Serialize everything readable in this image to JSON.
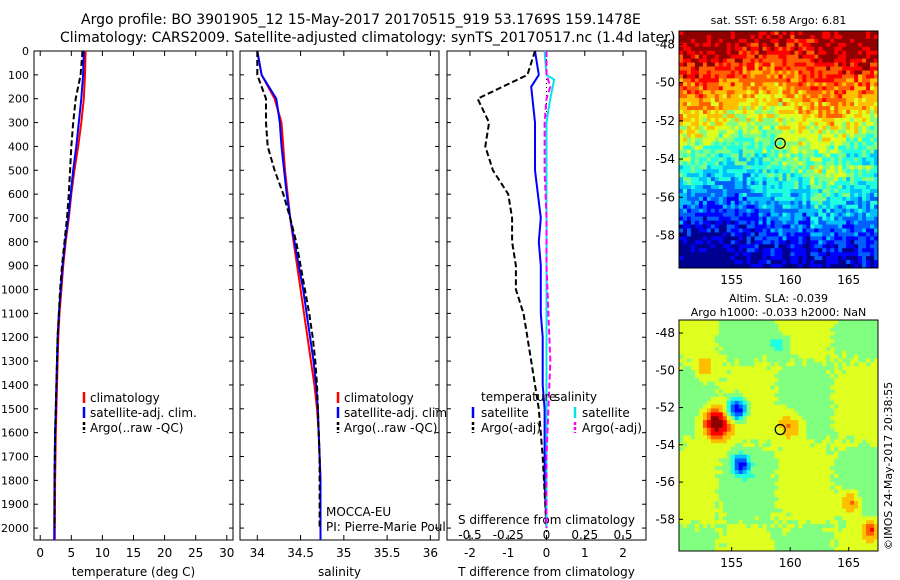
{
  "header": {
    "line1": "Argo profile: BO 3901905_12 15-May-2017 20170515_919 53.1769S 159.1478E",
    "line2": "Climatology: CARS2009. Satellite-adjusted climatology: synTS_20170517.nc (1.4d later)"
  },
  "credit": "©IMOS 24-May-2017 20:38:55",
  "colors": {
    "climatology": "#ff0000",
    "satellite": "#0000ff",
    "argo": "#000000",
    "satellite_salinity": "#00e5ee",
    "argo_salinity": "#ff00ff"
  },
  "chart_data": [
    {
      "id": "temperature",
      "type": "line",
      "xlabel": "temperature (deg C)",
      "xlim": [
        -1,
        31
      ],
      "ylim": [
        2050,
        0
      ],
      "xticks": [
        0,
        5,
        10,
        15,
        20,
        25,
        30
      ],
      "yticks": [
        0,
        100,
        200,
        300,
        400,
        500,
        600,
        700,
        800,
        900,
        1000,
        1100,
        1200,
        1300,
        1400,
        1500,
        1600,
        1700,
        1800,
        1900,
        2000
      ],
      "legend": [
        "climatology",
        "satellite-adj. clim.",
        "Argo(..raw -QC)"
      ],
      "series": [
        {
          "name": "climatology",
          "color": "#ff0000",
          "dash": "",
          "x": [
            7.3,
            7.2,
            7.0,
            6.6,
            6.1,
            5.5,
            5.0,
            4.6,
            4.1,
            3.7,
            3.4,
            3.1,
            2.9,
            2.8,
            2.7,
            2.6,
            2.5,
            2.45,
            2.4,
            2.35
          ],
          "y": [
            0,
            100,
            200,
            300,
            400,
            500,
            600,
            700,
            800,
            900,
            1000,
            1100,
            1200,
            1300,
            1400,
            1500,
            1600,
            1700,
            1800,
            2050
          ]
        },
        {
          "name": "satellite-adj. clim.",
          "color": "#0000ff",
          "dash": "",
          "x": [
            7.0,
            6.9,
            6.6,
            6.2,
            5.8,
            5.3,
            4.9,
            4.5,
            4.0,
            3.6,
            3.3,
            3.0,
            2.8,
            2.7,
            2.6,
            2.5,
            2.4,
            2.35,
            2.3,
            2.25
          ],
          "y": [
            0,
            100,
            200,
            300,
            400,
            500,
            600,
            700,
            800,
            900,
            1000,
            1100,
            1200,
            1300,
            1400,
            1500,
            1600,
            1700,
            1800,
            2050
          ]
        },
        {
          "name": "Argo(..raw -QC)",
          "color": "#000000",
          "dash": "6,3",
          "x": [
            6.8,
            6.5,
            5.7,
            5.3,
            5.0,
            4.8,
            4.6,
            4.3,
            3.9,
            3.5,
            3.2,
            3.0,
            2.8,
            2.7,
            2.6,
            2.5,
            2.4,
            2.35,
            2.3,
            2.3
          ],
          "y": [
            0,
            100,
            200,
            300,
            400,
            500,
            600,
            700,
            800,
            900,
            1000,
            1100,
            1200,
            1300,
            1400,
            1500,
            1600,
            1700,
            1800,
            2000
          ]
        }
      ]
    },
    {
      "id": "salinity",
      "type": "line",
      "xlabel": "salinity",
      "xlim": [
        33.8,
        36.1
      ],
      "ylim": [
        2050,
        0
      ],
      "xticks": [
        34,
        34.5,
        35,
        35.5,
        36
      ],
      "legend": [
        "climatology",
        "satellite-adj. clim.",
        "Argo(..raw -QC)"
      ],
      "annotations": [
        "MOCCA-EU",
        "PI: Pierre-Marie Poulain"
      ],
      "series": [
        {
          "name": "climatology",
          "color": "#ff0000",
          "dash": "",
          "x": [
            34.0,
            34.05,
            34.2,
            34.28,
            34.3,
            34.32,
            34.35,
            34.38,
            34.42,
            34.46,
            34.5,
            34.54,
            34.58,
            34.62,
            34.66,
            34.69,
            34.71,
            34.72,
            34.73,
            34.73
          ],
          "y": [
            0,
            100,
            200,
            300,
            400,
            500,
            600,
            700,
            800,
            900,
            1000,
            1100,
            1200,
            1300,
            1400,
            1500,
            1600,
            1700,
            1800,
            2050
          ]
        },
        {
          "name": "satellite-adj. clim.",
          "color": "#0000ff",
          "dash": "",
          "x": [
            34.0,
            34.05,
            34.22,
            34.26,
            34.28,
            34.31,
            34.34,
            34.38,
            34.43,
            34.48,
            34.53,
            34.57,
            34.61,
            34.65,
            34.68,
            34.7,
            34.71,
            34.72,
            34.73,
            34.73
          ],
          "y": [
            0,
            100,
            200,
            300,
            400,
            500,
            600,
            700,
            800,
            900,
            1000,
            1100,
            1200,
            1300,
            1400,
            1500,
            1600,
            1700,
            1800,
            2050
          ]
        },
        {
          "name": "Argo(..raw -QC)",
          "color": "#000000",
          "dash": "6,3",
          "x": [
            34.0,
            34.0,
            34.1,
            34.1,
            34.12,
            34.2,
            34.3,
            34.38,
            34.45,
            34.5,
            34.55,
            34.6,
            34.64,
            34.67,
            34.69,
            34.7,
            34.71,
            34.72,
            34.72
          ],
          "y": [
            0,
            100,
            200,
            300,
            400,
            500,
            600,
            700,
            800,
            900,
            1000,
            1100,
            1200,
            1300,
            1400,
            1500,
            1600,
            1700,
            2000
          ]
        }
      ]
    },
    {
      "id": "differences",
      "type": "line",
      "xlabel": "T difference from climatology",
      "xlabel_top": "S difference from climatology",
      "xlim": [
        -2.6,
        2.6
      ],
      "ylim": [
        2050,
        0
      ],
      "xticks": [
        -2,
        -1,
        0,
        1,
        2
      ],
      "xticks_salinity": [
        -0.5,
        -0.25,
        0,
        0.25,
        0.5
      ],
      "xtick_labels_salinity": [
        "-0.5",
        "-0.25",
        "0",
        "0.25",
        "0.5"
      ],
      "legend_temperature_title": "temperature",
      "legend_salinity_title": "salinity",
      "legend_temperature": [
        "satellite",
        "Argo(-adj)"
      ],
      "legend_salinity": [
        "satellite",
        "Argo(-adj)"
      ],
      "series": [
        {
          "name": "temperature satellite",
          "color": "#0000ff",
          "dash": "",
          "x": [
            -0.3,
            -0.2,
            -0.4,
            -0.3,
            -0.3,
            -0.3,
            -0.15,
            -0.2,
            -0.15,
            -0.15,
            -0.15,
            -0.1,
            -0.1,
            -0.1,
            -0.05,
            -0.05,
            -0.05,
            0.0
          ],
          "y": [
            0,
            100,
            150,
            300,
            400,
            500,
            700,
            800,
            900,
            1000,
            1100,
            1200,
            1300,
            1400,
            1500,
            1700,
            1800,
            2000
          ]
        },
        {
          "name": "temperature Argo(-adj)",
          "color": "#000000",
          "dash": "6,3",
          "x": [
            -0.3,
            -0.5,
            -1.8,
            -1.5,
            -1.6,
            -1.4,
            -1.0,
            -0.9,
            -0.9,
            -0.8,
            -0.8,
            -0.6,
            -0.5,
            -0.4,
            -0.3,
            -0.2,
            -0.1,
            0.0
          ],
          "y": [
            0,
            100,
            200,
            300,
            400,
            500,
            600,
            700,
            800,
            900,
            1000,
            1100,
            1200,
            1300,
            1400,
            1500,
            1700,
            2000
          ]
        },
        {
          "name": "salinity satellite",
          "color": "#00e5ee",
          "dash": "",
          "x": [
            -0.05,
            0.0,
            0.2,
            0.1,
            0.0,
            0.0,
            0.0,
            0.0,
            0.0,
            0.0,
            0.0,
            0.0
          ],
          "y": [
            0,
            100,
            120,
            200,
            300,
            500,
            700,
            900,
            1100,
            1400,
            1700,
            2000
          ]
        },
        {
          "name": "salinity Argo(-adj)",
          "color": "#ff00ff",
          "dash": "6,3",
          "x": [
            0.0,
            0.0,
            0.1,
            0.0,
            -0.05,
            -0.05,
            0.0,
            0.0,
            0.05,
            0.1,
            0.0,
            0.0
          ],
          "y": [
            0,
            100,
            150,
            200,
            300,
            500,
            700,
            900,
            1100,
            1300,
            1700,
            2000
          ]
        }
      ]
    },
    {
      "id": "sst_map",
      "type": "heatmap",
      "title": "sat. SST: 6.58 Argo: 6.81",
      "xlim": [
        150.5,
        167.5
      ],
      "ylim": [
        -59.7,
        -47.3
      ],
      "xticks": [
        155,
        160,
        165
      ],
      "yticks": [
        -48,
        -50,
        -52,
        -54,
        -56,
        -58
      ],
      "marker": {
        "lon": 159.1478,
        "lat": -53.1769
      }
    },
    {
      "id": "sla_map",
      "type": "heatmap",
      "title": "Altim. SLA: -0.039",
      "subtitle": "Argo h1000: -0.033 h2000: NaN",
      "xlim": [
        150.5,
        167.5
      ],
      "ylim": [
        -59.7,
        -47.3
      ],
      "xticks": [
        155,
        160,
        165
      ],
      "yticks": [
        -48,
        -50,
        -52,
        -54,
        -56,
        -58
      ],
      "marker": {
        "lon": 159.1478,
        "lat": -53.1769
      }
    }
  ]
}
